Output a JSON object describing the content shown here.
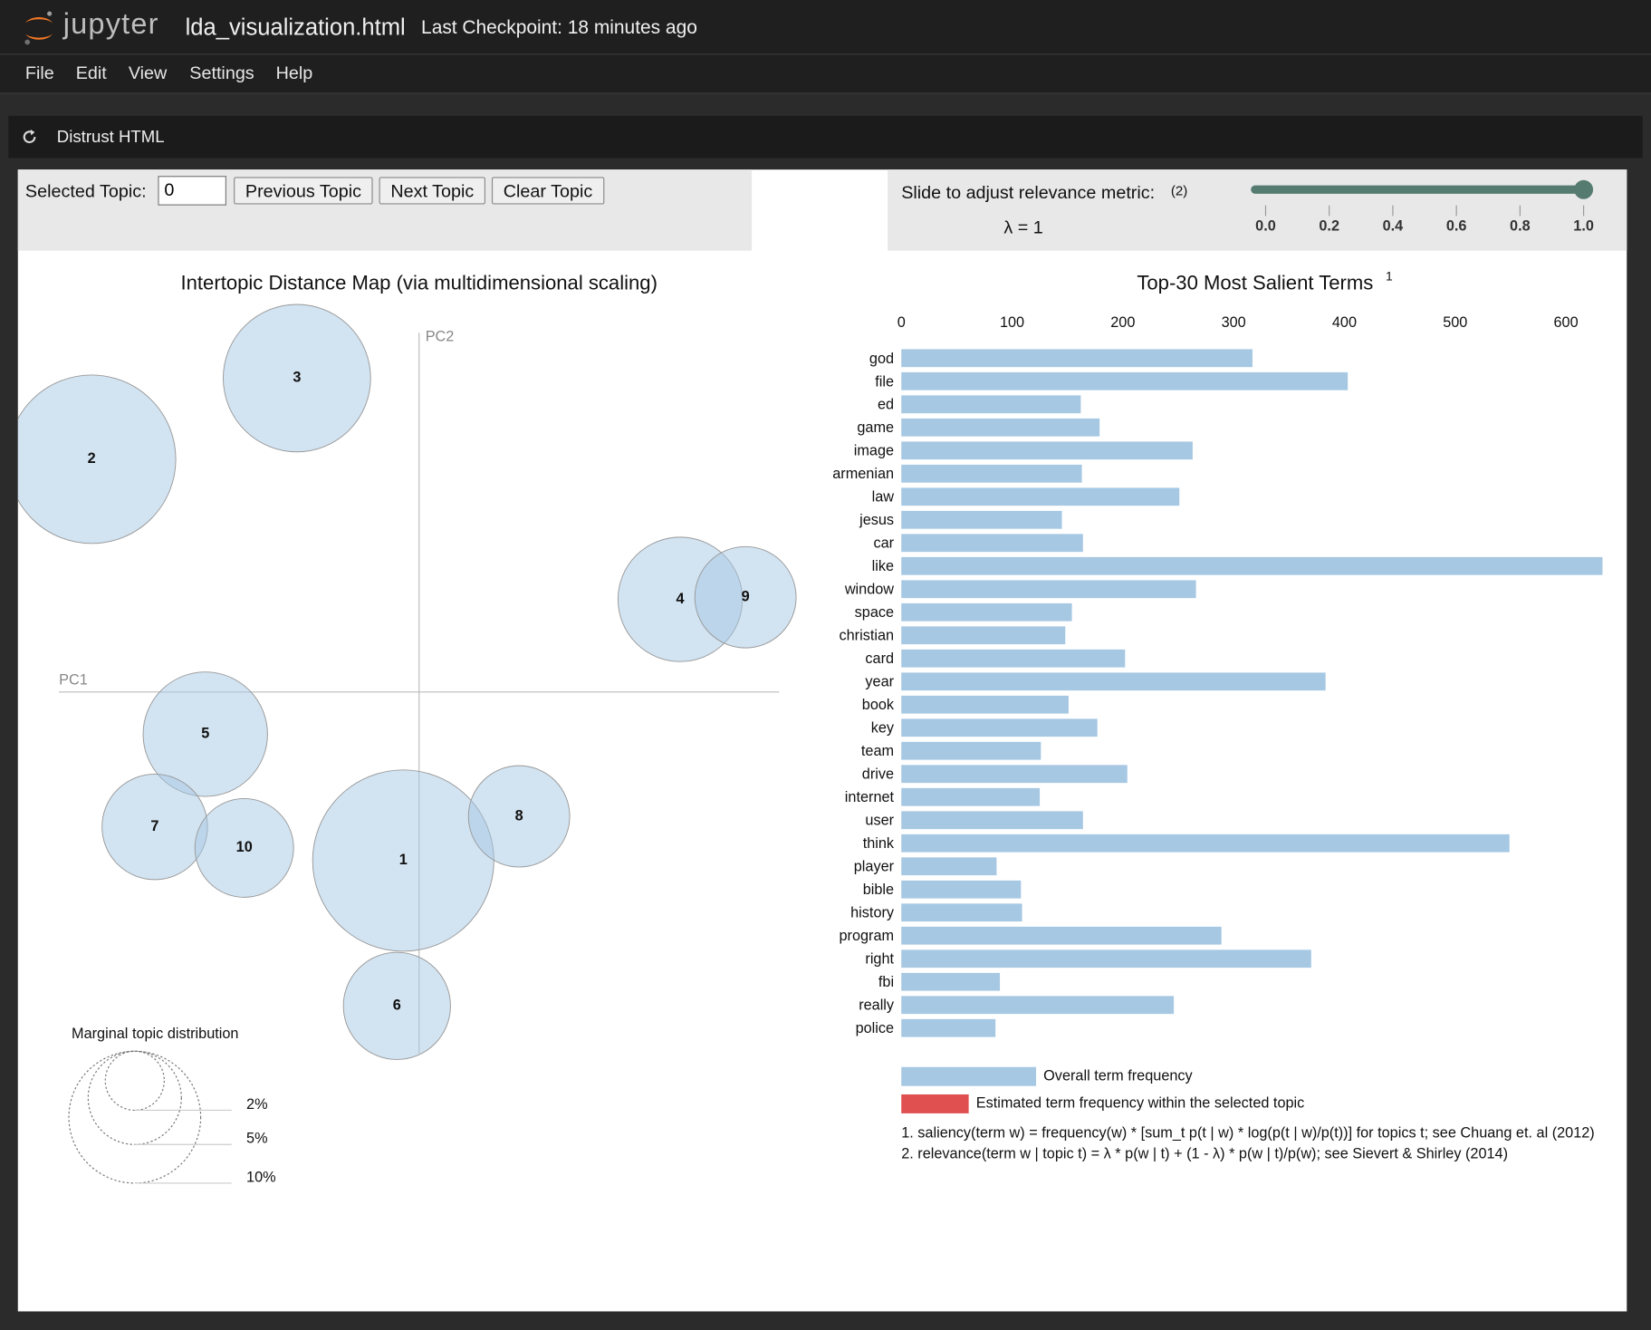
{
  "header": {
    "logo": "jupyter",
    "filename": "lda_visualization.html",
    "checkpoint": "Last Checkpoint: 18 minutes ago"
  },
  "menu": [
    "File",
    "Edit",
    "View",
    "Settings",
    "Help"
  ],
  "toolbar": {
    "button": "Distrust HTML"
  },
  "controls": {
    "selected_topic_label": "Selected Topic:",
    "selected_topic_value": 0,
    "buttons": [
      "Previous Topic",
      "Next Topic",
      "Clear Topic"
    ]
  },
  "relevance": {
    "label": "Slide to adjust relevance metric:",
    "note": "(2)",
    "lambda_label": "λ = 1",
    "value": 1,
    "range": [
      0,
      1
    ],
    "ticks": [
      {
        "value": 0,
        "label": "0.0"
      },
      {
        "value": 0.2,
        "label": "0.2"
      },
      {
        "value": 0.4,
        "label": "0.4"
      },
      {
        "value": 0.6,
        "label": "0.6"
      },
      {
        "value": 0.8,
        "label": "0.8"
      },
      {
        "value": 1,
        "label": "1.0"
      }
    ],
    "color": "#557a6f"
  },
  "topic_map": {
    "title": "Intertopic Distance Map (via multidimensional scaling)",
    "xlabel": "PC1",
    "ylabel": "PC2",
    "xlim": [
      -0.342,
      0.342
    ],
    "ylim": [
      -0.343,
      0.341
    ],
    "color": "#a6c8e3",
    "topics": [
      {
        "id": 1,
        "pc1": -0.015,
        "pc2": -0.16,
        "size": 18.9
      },
      {
        "id": 2,
        "pc1": -0.311,
        "pc2": 0.221,
        "size": 16.3
      },
      {
        "id": 3,
        "pc1": -0.116,
        "pc2": 0.298,
        "size": 12.5
      },
      {
        "id": 4,
        "pc1": 0.248,
        "pc2": 0.088,
        "size": 8.9
      },
      {
        "id": 5,
        "pc1": -0.203,
        "pc2": -0.04,
        "size": 8.9
      },
      {
        "id": 6,
        "pc1": -0.021,
        "pc2": -0.298,
        "size": 6.6
      },
      {
        "id": 7,
        "pc1": -0.251,
        "pc2": -0.128,
        "size": 6.4
      },
      {
        "id": 8,
        "pc1": 0.095,
        "pc2": -0.118,
        "size": 5.9
      },
      {
        "id": 9,
        "pc1": 0.31,
        "pc2": 0.09,
        "size": 5.9
      },
      {
        "id": 10,
        "pc1": -0.166,
        "pc2": -0.148,
        "size": 5.6
      }
    ],
    "legend": {
      "title": "Marginal topic distribution",
      "sizes": [
        {
          "value": 2,
          "label": "2%"
        },
        {
          "value": 5,
          "label": "5%"
        },
        {
          "value": 10,
          "label": "10%"
        }
      ]
    }
  },
  "terms_chart": {
    "title": "Top-30 Most Salient Terms",
    "title_note": "1",
    "terms": [
      "god",
      "file",
      "ed",
      "game",
      "image",
      "armenian",
      "law",
      "jesus",
      "car",
      "like",
      "window",
      "space",
      "christian",
      "card",
      "year",
      "book",
      "key",
      "team",
      "drive",
      "internet",
      "user",
      "think",
      "player",
      "bible",
      "history",
      "program",
      "right",
      "fbi",
      "really",
      "police"
    ],
    "values": [
      317,
      403,
      162,
      179,
      263,
      163,
      251,
      145,
      164,
      633,
      266,
      154,
      148,
      202,
      383,
      151,
      177,
      126,
      204,
      125,
      164,
      549,
      86,
      108,
      109,
      289,
      370,
      89,
      246,
      85
    ],
    "xlim": [
      0,
      634
    ],
    "xticks": [
      0,
      100,
      200,
      300,
      400,
      500,
      600
    ],
    "legend": [
      {
        "name": "Overall term frequency",
        "color": "#a6c8e3"
      },
      {
        "name": "Estimated term frequency within the selected topic",
        "color": "#e05050"
      }
    ],
    "footnotes": [
      "1. saliency(term w) = frequency(w) * [sum_t p(t | w) * log(p(t | w)/p(t))] for topics t; see Chuang et. al (2012)",
      "2. relevance(term w | topic t) = λ * p(w | t) + (1 - λ) * p(w | t)/p(w); see Sievert & Shirley (2014)"
    ]
  }
}
